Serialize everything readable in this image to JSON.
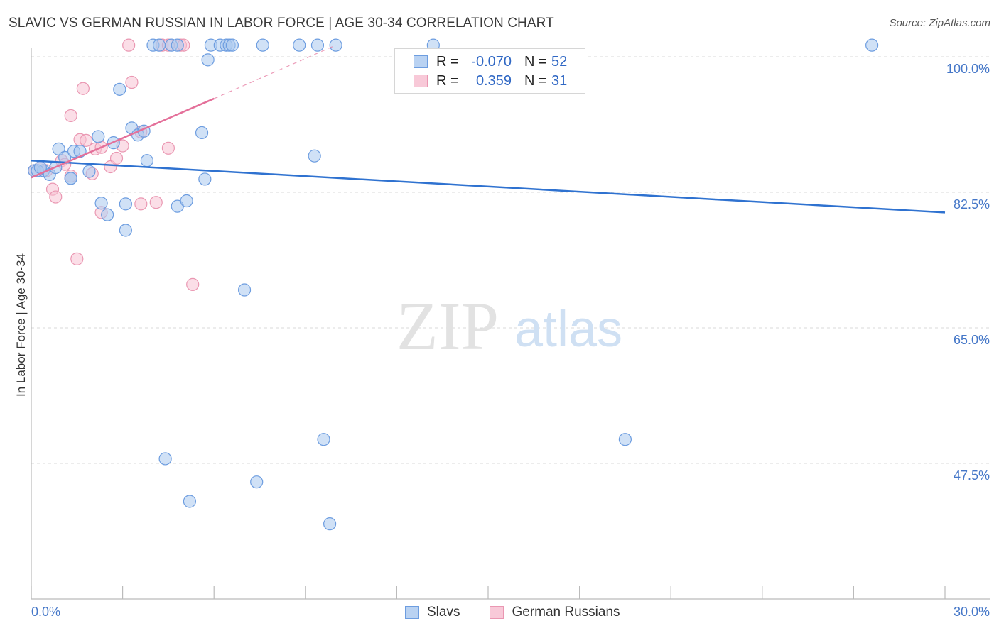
{
  "title": "SLAVIC VS GERMAN RUSSIAN IN LABOR FORCE | AGE 30-34 CORRELATION CHART",
  "source": "Source: ZipAtlas.com",
  "watermark": {
    "zip": "ZIP",
    "atlas": "atlas"
  },
  "legend": {
    "series1": {
      "r_label": "R =",
      "r_value": "-0.070",
      "n_label": "N =",
      "n_value": "52"
    },
    "series2": {
      "r_label": "R =",
      "r_value": "0.359",
      "n_label": "N =",
      "n_value": "31"
    }
  },
  "bottom_legend": {
    "s1": "Slavs",
    "s2": "German Russians"
  },
  "x_axis": {
    "min_label": "0.0%",
    "max_label": "30.0%"
  },
  "chart_data": {
    "type": "scatter",
    "title": "SLAVIC VS GERMAN RUSSIAN IN LABOR FORCE | AGE 30-34 CORRELATION CHART",
    "xlabel": "",
    "ylabel": "In Labor Force | Age 30-34",
    "xlim": [
      0,
      30
    ],
    "ylim": [
      30,
      102
    ],
    "y_ticks": [
      {
        "value": 100,
        "label": "100.0%"
      },
      {
        "value": 82.5,
        "label": "82.5%"
      },
      {
        "value": 65,
        "label": "65.0%"
      },
      {
        "value": 47.5,
        "label": "47.5%"
      }
    ],
    "x_tick_values": [
      0,
      3,
      6,
      9,
      12,
      15,
      18,
      21,
      24,
      27,
      30
    ],
    "colors": {
      "slavs_fill": "#a9c8ef",
      "slavs_stroke": "#6d9de0",
      "slavs_line": "#2f72d0",
      "gr_fill": "#f7c3d3",
      "gr_stroke": "#ea97b2",
      "gr_line": "#e4709a",
      "grid": "#d9d9d9",
      "tick_label": "#4577c8",
      "axis": "#bbbbbb"
    },
    "series": [
      {
        "name": "Slavs",
        "points": [
          [
            0.1,
            85.3
          ],
          [
            0.4,
            85.3
          ],
          [
            0.6,
            84.8
          ],
          [
            0.8,
            85.7
          ],
          [
            0.9,
            88.1
          ],
          [
            1.1,
            87.0
          ],
          [
            1.3,
            84.3
          ],
          [
            1.4,
            87.8
          ],
          [
            1.6,
            87.8
          ],
          [
            1.9,
            85.2
          ],
          [
            2.2,
            89.7
          ],
          [
            2.3,
            81.1
          ],
          [
            2.5,
            79.6
          ],
          [
            2.7,
            88.9
          ],
          [
            2.9,
            95.8
          ],
          [
            3.1,
            81.0
          ],
          [
            3.1,
            77.6
          ],
          [
            3.3,
            90.8
          ],
          [
            3.5,
            89.9
          ],
          [
            3.7,
            90.4
          ],
          [
            3.8,
            86.6
          ],
          [
            4.0,
            101.5
          ],
          [
            4.2,
            101.5
          ],
          [
            4.4,
            48.1
          ],
          [
            4.6,
            101.5
          ],
          [
            4.8,
            101.5
          ],
          [
            4.8,
            80.7
          ],
          [
            5.1,
            81.4
          ],
          [
            5.2,
            42.6
          ],
          [
            5.6,
            90.2
          ],
          [
            5.7,
            84.2
          ],
          [
            5.8,
            99.6
          ],
          [
            5.9,
            101.5
          ],
          [
            6.2,
            101.5
          ],
          [
            6.4,
            101.5
          ],
          [
            6.5,
            101.5
          ],
          [
            6.6,
            101.5
          ],
          [
            7.0,
            69.9
          ],
          [
            7.4,
            45.1
          ],
          [
            7.6,
            101.5
          ],
          [
            8.8,
            101.5
          ],
          [
            9.3,
            87.2
          ],
          [
            9.4,
            101.5
          ],
          [
            9.6,
            50.6
          ],
          [
            9.8,
            39.7
          ],
          [
            10.0,
            101.5
          ],
          [
            13.2,
            101.5
          ],
          [
            19.5,
            50.6
          ],
          [
            27.6,
            101.5
          ],
          [
            0.2,
            85.3
          ],
          [
            0.3,
            85.7
          ],
          [
            1.3,
            84.3
          ]
        ],
        "trend": {
          "x0": 0,
          "y0": 86.6,
          "x1": 30,
          "y1": 79.9
        }
      },
      {
        "name": "German Russians",
        "points": [
          [
            0.1,
            85.3
          ],
          [
            0.3,
            85.7
          ],
          [
            0.5,
            85.3
          ],
          [
            0.7,
            82.9
          ],
          [
            0.8,
            81.9
          ],
          [
            1.0,
            86.6
          ],
          [
            1.1,
            86.1
          ],
          [
            1.3,
            84.6
          ],
          [
            1.3,
            92.4
          ],
          [
            1.5,
            73.9
          ],
          [
            1.6,
            89.3
          ],
          [
            1.7,
            95.9
          ],
          [
            1.8,
            89.2
          ],
          [
            2.0,
            84.9
          ],
          [
            2.1,
            88.1
          ],
          [
            2.3,
            88.3
          ],
          [
            2.3,
            79.9
          ],
          [
            2.6,
            85.8
          ],
          [
            2.8,
            86.9
          ],
          [
            3.0,
            88.5
          ],
          [
            3.2,
            101.5
          ],
          [
            3.3,
            96.7
          ],
          [
            3.6,
            90.3
          ],
          [
            3.6,
            81.0
          ],
          [
            4.1,
            81.2
          ],
          [
            4.3,
            101.5
          ],
          [
            4.5,
            101.5
          ],
          [
            4.5,
            88.2
          ],
          [
            4.9,
            101.5
          ],
          [
            5.0,
            101.5
          ],
          [
            5.3,
            70.6
          ]
        ],
        "trend": {
          "x0": 0,
          "y0": 84.4,
          "x1": 6.0,
          "y1": 94.6
        },
        "trend_dashed": {
          "x0": 6.0,
          "y0": 94.6,
          "x1": 10.0,
          "y1": 101.5
        }
      }
    ]
  }
}
